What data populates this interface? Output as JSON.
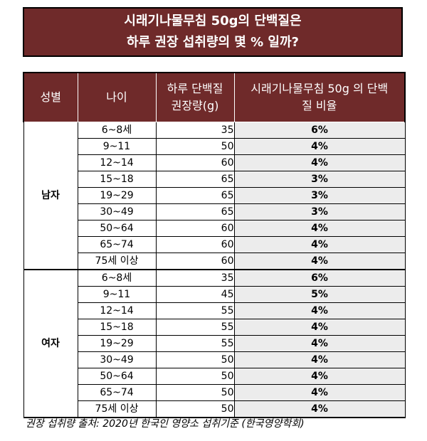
{
  "title": {
    "line1": "시래기나물무침 50g의 단백질은",
    "line2": "하루 권장 섭취량의 몇 % 일까?"
  },
  "table": {
    "headers": {
      "gender": "성별",
      "age": "나이",
      "intake_line1": "하루 단백질",
      "intake_line2": "권장량(g)",
      "ratio_line1": "시래기나물무침 50g 의 단백",
      "ratio_line2": "질 비율"
    },
    "groups": [
      {
        "gender": "남자",
        "rows": [
          {
            "age": "6~8세",
            "amount": "35",
            "percent": "6%"
          },
          {
            "age": "9~11",
            "amount": "50",
            "percent": "4%"
          },
          {
            "age": "12~14",
            "amount": "60",
            "percent": "4%"
          },
          {
            "age": "15~18",
            "amount": "65",
            "percent": "3%"
          },
          {
            "age": "19~29",
            "amount": "65",
            "percent": "3%"
          },
          {
            "age": "30~49",
            "amount": "65",
            "percent": "3%"
          },
          {
            "age": "50~64",
            "amount": "60",
            "percent": "4%"
          },
          {
            "age": "65~74",
            "amount": "60",
            "percent": "4%"
          },
          {
            "age": "75세 이상",
            "amount": "60",
            "percent": "4%"
          }
        ]
      },
      {
        "gender": "여자",
        "rows": [
          {
            "age": "6~8세",
            "amount": "35",
            "percent": "6%"
          },
          {
            "age": "9~11",
            "amount": "45",
            "percent": "5%"
          },
          {
            "age": "12~14",
            "amount": "55",
            "percent": "4%"
          },
          {
            "age": "15~18",
            "amount": "55",
            "percent": "4%"
          },
          {
            "age": "19~29",
            "amount": "55",
            "percent": "4%"
          },
          {
            "age": "30~49",
            "amount": "50",
            "percent": "4%"
          },
          {
            "age": "50~64",
            "amount": "50",
            "percent": "4%"
          },
          {
            "age": "65~74",
            "amount": "50",
            "percent": "4%"
          },
          {
            "age": "75세 이상",
            "amount": "50",
            "percent": "4%"
          }
        ]
      }
    ]
  },
  "source": "권장 섭취량 출처: 2020년 한국인 영양소 섭취기준 (한국영양학회)",
  "colors": {
    "header_bg": "#6f2a2a",
    "percent_bg": "#ececec"
  }
}
